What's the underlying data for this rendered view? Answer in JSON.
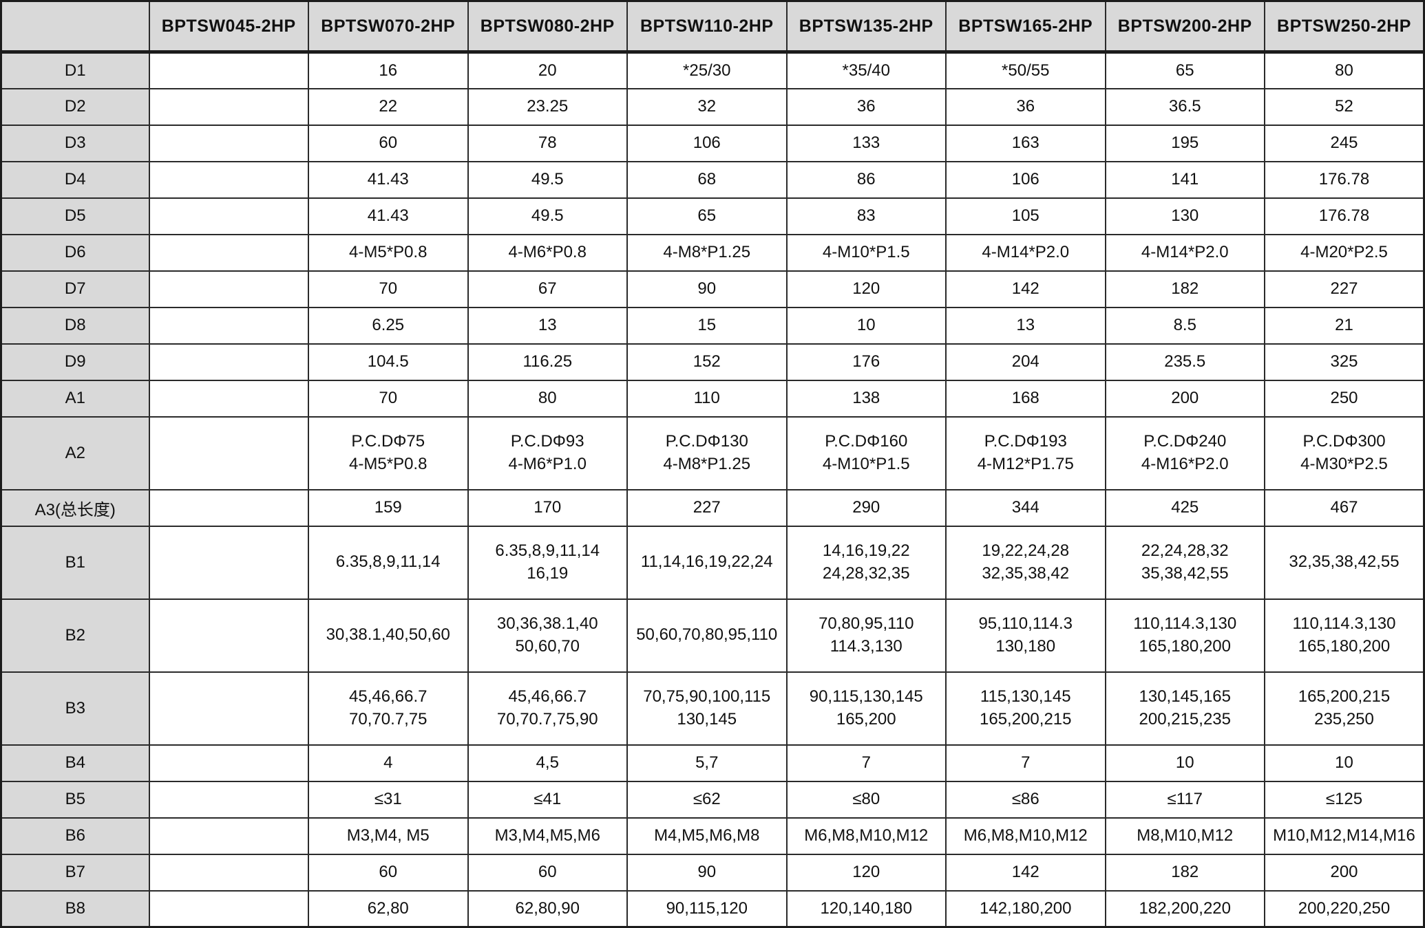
{
  "table": {
    "columns": [
      "",
      "BPTSW045-2HP",
      "BPTSW070-2HP",
      "BPTSW080-2HP",
      "BPTSW110-2HP",
      "BPTSW135-2HP",
      "BPTSW165-2HP",
      "BPTSW200-2HP",
      "BPTSW250-2HP"
    ],
    "rows": [
      {
        "label": "D1",
        "values": [
          "",
          "16",
          "20",
          "*25/30",
          "*35/40",
          "*50/55",
          "65",
          "80"
        ]
      },
      {
        "label": "D2",
        "values": [
          "",
          "22",
          "23.25",
          "32",
          "36",
          "36",
          "36.5",
          "52"
        ]
      },
      {
        "label": "D3",
        "values": [
          "",
          "60",
          "78",
          "106",
          "133",
          "163",
          "195",
          "245"
        ]
      },
      {
        "label": "D4",
        "values": [
          "",
          "41.43",
          "49.5",
          "68",
          "86",
          "106",
          "141",
          "176.78"
        ]
      },
      {
        "label": "D5",
        "values": [
          "",
          "41.43",
          "49.5",
          "65",
          "83",
          "105",
          "130",
          "176.78"
        ]
      },
      {
        "label": "D6",
        "values": [
          "",
          "4-M5*P0.8",
          "4-M6*P0.8",
          "4-M8*P1.25",
          "4-M10*P1.5",
          "4-M14*P2.0",
          "4-M14*P2.0",
          "4-M20*P2.5"
        ]
      },
      {
        "label": "D7",
        "values": [
          "",
          "70",
          "67",
          "90",
          "120",
          "142",
          "182",
          "227"
        ]
      },
      {
        "label": "D8",
        "values": [
          "",
          "6.25",
          "13",
          "15",
          "10",
          "13",
          "8.5",
          "21"
        ]
      },
      {
        "label": "D9",
        "values": [
          "",
          "104.5",
          "116.25",
          "152",
          "176",
          "204",
          "235.5",
          "325"
        ]
      },
      {
        "label": "A1",
        "values": [
          "",
          "70",
          "80",
          "110",
          "138",
          "168",
          "200",
          "250"
        ]
      },
      {
        "label": "A2",
        "values": [
          "",
          "P.C.DΦ75\n4-M5*P0.8",
          "P.C.DΦ93\n4-M6*P1.0",
          "P.C.DΦ130\n4-M8*P1.25",
          "P.C.DΦ160\n4-M10*P1.5",
          "P.C.DΦ193\n4-M12*P1.75",
          "P.C.DΦ240\n4-M16*P2.0",
          "P.C.DΦ300\n4-M30*P2.5"
        ]
      },
      {
        "label": "A3(总长度)",
        "values": [
          "",
          "159",
          "170",
          "227",
          "290",
          "344",
          "425",
          "467"
        ]
      },
      {
        "label": "B1",
        "values": [
          "",
          "6.35,8,9,11,14",
          "6.35,8,9,11,14\n16,19",
          "11,14,16,19,22,24",
          "14,16,19,22\n24,28,32,35",
          "19,22,24,28\n32,35,38,42",
          "22,24,28,32\n35,38,42,55",
          "32,35,38,42,55"
        ]
      },
      {
        "label": "B2",
        "values": [
          "",
          "30,38.1,40,50,60",
          "30,36,38.1,40\n50,60,70",
          "50,60,70,80,95,110",
          "70,80,95,110\n114.3,130",
          "95,110,114.3\n130,180",
          "110,114.3,130\n165,180,200",
          "110,114.3,130\n165,180,200"
        ]
      },
      {
        "label": "B3",
        "values": [
          "",
          "45,46,66.7\n70,70.7,75",
          "45,46,66.7\n70,70.7,75,90",
          "70,75,90,100,115\n130,145",
          "90,115,130,145\n165,200",
          "115,130,145\n165,200,215",
          "130,145,165\n200,215,235",
          "165,200,215\n235,250"
        ]
      },
      {
        "label": "B4",
        "values": [
          "",
          "4",
          "4,5",
          "5,7",
          "7",
          "7",
          "10",
          "10"
        ]
      },
      {
        "label": "B5",
        "values": [
          "",
          "≤31",
          "≤41",
          "≤62",
          "≤80",
          "≤86",
          "≤117",
          "≤125"
        ]
      },
      {
        "label": "B6",
        "values": [
          "",
          "M3,M4, M5",
          "M3,M4,M5,M6",
          "M4,M5,M6,M8",
          "M6,M8,M10,M12",
          "M6,M8,M10,M12",
          "M8,M10,M12",
          "M10,M12,M14,M16"
        ]
      },
      {
        "label": "B7",
        "values": [
          "",
          "60",
          "60",
          "90",
          "120",
          "142",
          "182",
          "200"
        ]
      },
      {
        "label": "B8",
        "values": [
          "",
          "62,80",
          "62,80,90",
          "90,115,120",
          "120,140,180",
          "142,180,200",
          "182,200,220",
          "200,220,250"
        ]
      }
    ],
    "styles": {
      "header_bg": "#d9d9d9",
      "label_bg": "#d9d9d9",
      "cell_bg": "#ffffff",
      "border_color": "#1c1c1c",
      "text_color": "#111111"
    }
  }
}
